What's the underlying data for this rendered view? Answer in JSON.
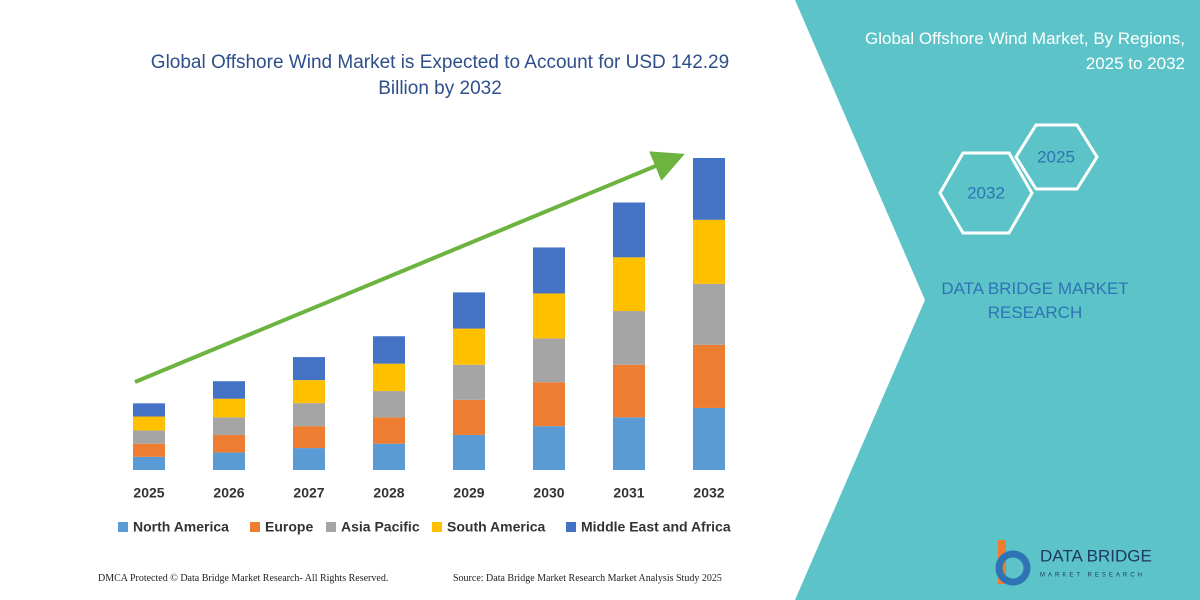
{
  "chart_data": {
    "type": "bar",
    "stacked": true,
    "title": "Global Offshore Wind Market is Expected to Account for USD 142.29 Billion by 2032",
    "categories": [
      "2025",
      "2026",
      "2027",
      "2028",
      "2029",
      "2030",
      "2031",
      "2032"
    ],
    "series": [
      {
        "name": "North America",
        "color": "#5b9bd5",
        "values": [
          6,
          8,
          10,
          12,
          16,
          20,
          24,
          28.3
        ]
      },
      {
        "name": "Europe",
        "color": "#ed7d31",
        "values": [
          6,
          8,
          10,
          12,
          16,
          20,
          24,
          28.8
        ]
      },
      {
        "name": "Asia Pacific",
        "color": "#a5a5a5",
        "values": [
          6,
          8,
          10.5,
          12,
          16,
          20,
          24.5,
          27.8
        ]
      },
      {
        "name": "South America",
        "color": "#ffc000",
        "values": [
          6.4,
          8.5,
          10.5,
          12.5,
          16.5,
          20.5,
          24.5,
          29.2
        ]
      },
      {
        "name": "Middle East and Africa",
        "color": "#4472c4",
        "values": [
          6,
          8,
          10.5,
          12.5,
          16.5,
          21,
          25,
          28.19
        ]
      }
    ],
    "legend": "bottom",
    "grid": false
  },
  "panel": {
    "title": "Global Offshore Wind Market, By Regions, 2025 to 2032",
    "hex_front": "2032",
    "hex_back": "2025",
    "brand": "DATA BRIDGE MARKET RESEARCH"
  },
  "logo": {
    "name": "DATA BRIDGE",
    "tagline": "MARKET RESEARCH"
  },
  "footer": {
    "left": "DMCA Protected © Data Bridge Market Research-  All Rights Reserved.",
    "right": "Source: Data Bridge Market Research  Market Analysis Study 2025"
  }
}
